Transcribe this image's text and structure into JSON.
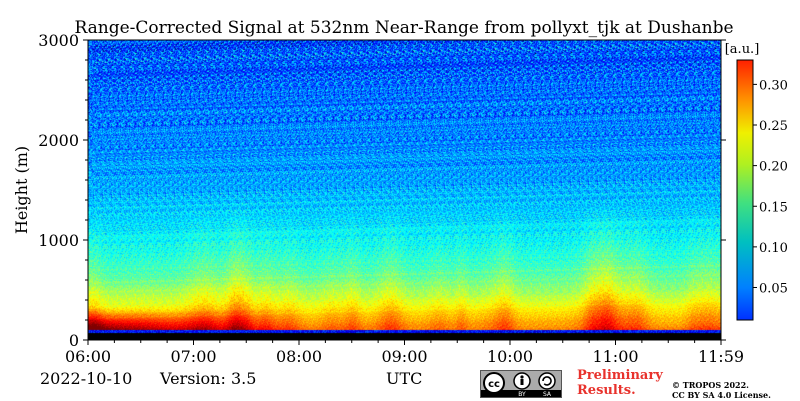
{
  "chart_data": {
    "type": "heatmap",
    "title": "Range-Corrected Signal at 532nm Near-Range from pollyxt_tjk at Dushanbe",
    "ylabel": "Height (m)",
    "xlabel": "UTC",
    "x_ticks": [
      "06:00",
      "07:00",
      "08:00",
      "09:00",
      "10:00",
      "11:00",
      "11:59"
    ],
    "y_ticks": [
      0,
      1000,
      2000,
      3000
    ],
    "ylim": [
      0,
      3000
    ],
    "colorbar": {
      "unit": "[a.u.]",
      "ticks": [
        0.05,
        0.1,
        0.15,
        0.2,
        0.25,
        0.3
      ],
      "range": [
        0.01,
        0.33
      ],
      "colormap": "jet"
    },
    "features": [
      {
        "x": "06:00-08:00",
        "height_m": "80-300",
        "value": 0.3
      },
      {
        "x": "08:00-11:59",
        "height_m": "100-600",
        "value": 0.22
      },
      {
        "x": "06:00-11:59",
        "height_m": "1000",
        "value": 0.17
      },
      {
        "x": "06:00-11:59",
        "height_m": "2000",
        "value": 0.1
      },
      {
        "x": "06:00-11:59",
        "height_m": "3000",
        "value": 0.07
      }
    ]
  },
  "footer": {
    "date": "2022-10-10",
    "version": "Version: 3.5",
    "preliminary_line1": "Preliminary",
    "preliminary_line2": "Results.",
    "copyright_line1": "© TROPOS 2022.",
    "copyright_line2": "CC BY SA 4.0 License.",
    "license_badge_label": "cc by sa"
  }
}
